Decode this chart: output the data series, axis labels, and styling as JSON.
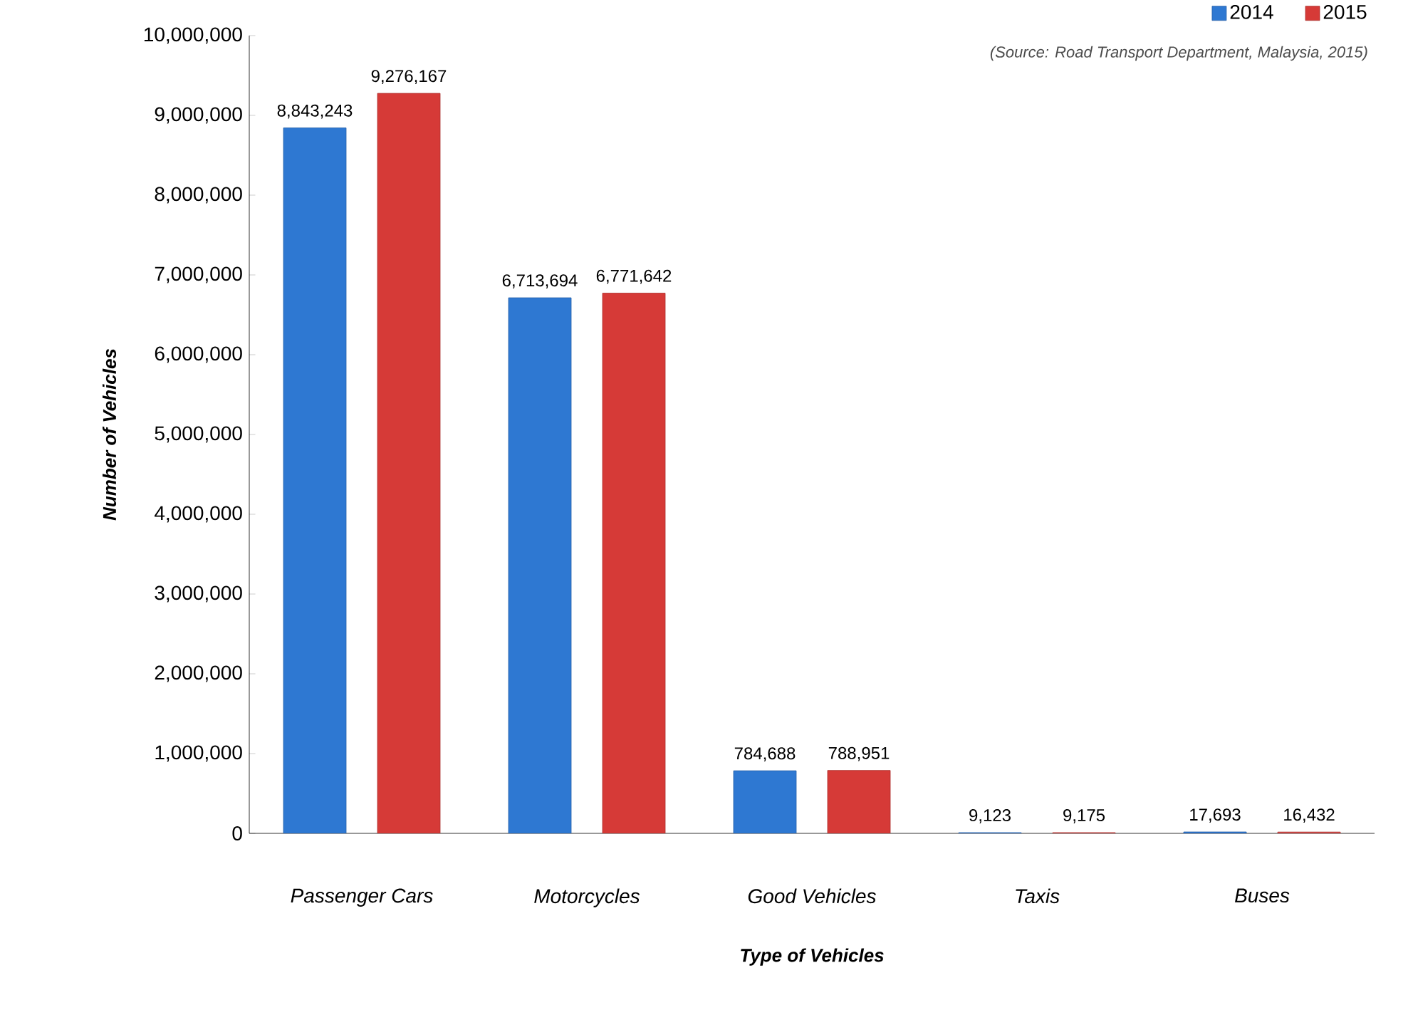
{
  "chart_data": {
    "type": "bar",
    "xlabel": "Type of Vehicles",
    "ylabel": "Number of Vehicles",
    "categories": [
      "Passenger Cars",
      "Motorcycles",
      "Good Vehicles",
      "Taxis",
      "Buses"
    ],
    "series": [
      {
        "name": "2014",
        "color": "#2e78d2",
        "values": [
          8843243,
          6713694,
          784688,
          9123,
          17693
        ],
        "value_labels": [
          "8,843,243",
          "6,713,694",
          "784,688",
          "9,123",
          "17,693"
        ]
      },
      {
        "name": "2015",
        "color": "#d63a37",
        "values": [
          9276167,
          6771642,
          788951,
          9175,
          16432
        ],
        "value_labels": [
          "9,276,167",
          "6,771,642",
          "788,951",
          "9,175",
          "16,432"
        ]
      }
    ],
    "ylim": [
      0,
      10000000
    ],
    "yticks": [
      {
        "value": 0,
        "label": "0"
      },
      {
        "value": 1000000,
        "label": "1,000,000"
      },
      {
        "value": 2000000,
        "label": "2,000,000"
      },
      {
        "value": 3000000,
        "label": "3,000,000"
      },
      {
        "value": 4000000,
        "label": "4,000,000"
      },
      {
        "value": 5000000,
        "label": "5,000,000"
      },
      {
        "value": 6000000,
        "label": "6,000,000"
      },
      {
        "value": 7000000,
        "label": "7,000,000"
      },
      {
        "value": 8000000,
        "label": "8,000,000"
      },
      {
        "value": 9000000,
        "label": "9,000,000"
      },
      {
        "value": 10000000,
        "label": "10,000,000"
      }
    ],
    "legend": "top right",
    "annotations": [
      "(Source: Road Transport Department, Malaysia, 2015)"
    ]
  }
}
